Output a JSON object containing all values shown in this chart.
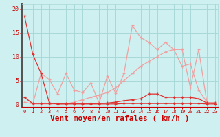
{
  "x": [
    0,
    1,
    2,
    3,
    4,
    5,
    6,
    7,
    8,
    9,
    10,
    11,
    12,
    13,
    14,
    15,
    16,
    17,
    18,
    19,
    20,
    21,
    22,
    23
  ],
  "line_steep_down": [
    18.5,
    10.5,
    6.5,
    0.3,
    0.1,
    0.1,
    0.1,
    0.1,
    0.1,
    0.1,
    0.1,
    0.1,
    0.2,
    0.2,
    0.2,
    0.2,
    0.2,
    0.2,
    0.2,
    0.2,
    0.2,
    0.2,
    0.1,
    0.1
  ],
  "line_jagged": [
    1.5,
    0.1,
    6.5,
    5.2,
    2.2,
    6.5,
    3.0,
    2.5,
    4.5,
    0.3,
    6.0,
    2.3,
    6.5,
    16.5,
    14.0,
    13.0,
    11.5,
    13.0,
    11.5,
    11.5,
    3.5,
    11.5,
    0.3,
    0.4
  ],
  "line_rise": [
    0.5,
    0.1,
    0.1,
    0.1,
    0.1,
    0.1,
    0.5,
    1.0,
    1.5,
    2.0,
    2.5,
    3.5,
    5.0,
    6.5,
    8.0,
    9.0,
    10.0,
    11.0,
    11.5,
    8.0,
    8.5,
    3.0,
    0.5,
    0.1
  ],
  "line_flat": [
    1.5,
    0.2,
    0.2,
    0.2,
    0.2,
    0.2,
    0.2,
    0.2,
    0.2,
    0.2,
    0.3,
    0.5,
    0.8,
    1.0,
    1.2,
    2.2,
    2.2,
    1.5,
    1.5,
    1.5,
    1.5,
    1.2,
    0.3,
    0.3
  ],
  "color_dark": "#e03030",
  "color_light": "#f0a0a0",
  "color_med": "#f07070",
  "bg_color": "#cef0f0",
  "grid_color": "#a8d8d8",
  "xlabel": "Vent moyen/en rafales ( km/h )",
  "ylabel_ticks": [
    0,
    5,
    10,
    15,
    20
  ],
  "xlim": [
    -0.3,
    23.3
  ],
  "ylim": [
    -0.5,
    21
  ],
  "xlabel_color": "#cc0000",
  "tick_color": "#cc0000"
}
